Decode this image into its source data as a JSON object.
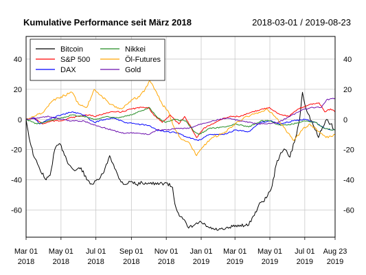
{
  "chart_data": {
    "type": "line",
    "title": "Kumulative Performance seit März 2018",
    "date_range": "2018-03-01 / 2019-08-23",
    "xlabel": "",
    "ylabel": "",
    "ylim": [
      -78,
      55
    ],
    "x_ticks": [
      {
        "date": "2018-03-01",
        "line1": "Mar 01",
        "line2": "2018"
      },
      {
        "date": "2018-05-01",
        "line1": "May 01",
        "line2": "2018"
      },
      {
        "date": "2018-07-01",
        "line1": "Jul 01",
        "line2": "2018"
      },
      {
        "date": "2018-09-01",
        "line1": "Sep 01",
        "line2": "2018"
      },
      {
        "date": "2018-11-01",
        "line1": "Nov 01",
        "line2": "2018"
      },
      {
        "date": "2019-01-01",
        "line1": "Jan 01",
        "line2": "2019"
      },
      {
        "date": "2019-03-01",
        "line1": "Mar 01",
        "line2": "2019"
      },
      {
        "date": "2019-05-01",
        "line1": "May 01",
        "line2": "2019"
      },
      {
        "date": "2019-07-01",
        "line1": "Jul 01",
        "line2": "2019"
      },
      {
        "date": "2019-08-23",
        "line1": "Aug 23",
        "line2": "2019"
      }
    ],
    "y_ticks": [
      40,
      20,
      0,
      -20,
      -40,
      -60
    ],
    "y_tick_labels": [
      "40",
      "20",
      "0",
      "-20",
      "-40",
      "-60"
    ],
    "grid": true,
    "legend_position": "top-left",
    "series": [
      {
        "name": "Bitcoin",
        "color": "#000000",
        "points": [
          [
            "2018-03-01",
            0
          ],
          [
            "2018-03-08",
            -15
          ],
          [
            "2018-03-15",
            -25
          ],
          [
            "2018-03-25",
            -33
          ],
          [
            "2018-04-05",
            -40
          ],
          [
            "2018-04-12",
            -37
          ],
          [
            "2018-04-20",
            -20
          ],
          [
            "2018-04-28",
            -16
          ],
          [
            "2018-05-05",
            -21
          ],
          [
            "2018-05-15",
            -30
          ],
          [
            "2018-05-25",
            -34
          ],
          [
            "2018-06-05",
            -32
          ],
          [
            "2018-06-15",
            -40
          ],
          [
            "2018-06-25",
            -43
          ],
          [
            "2018-07-05",
            -40
          ],
          [
            "2018-07-15",
            -35
          ],
          [
            "2018-07-25",
            -24
          ],
          [
            "2018-08-01",
            -30
          ],
          [
            "2018-08-10",
            -39
          ],
          [
            "2018-08-20",
            -43
          ],
          [
            "2018-09-01",
            -41
          ],
          [
            "2018-09-10",
            -43
          ],
          [
            "2018-09-20",
            -42
          ],
          [
            "2018-10-01",
            -42
          ],
          [
            "2018-10-15",
            -43
          ],
          [
            "2018-11-01",
            -42
          ],
          [
            "2018-11-12",
            -45
          ],
          [
            "2018-11-16",
            -56
          ],
          [
            "2018-11-22",
            -62
          ],
          [
            "2018-11-30",
            -66
          ],
          [
            "2018-12-10",
            -72
          ],
          [
            "2018-12-20",
            -70
          ],
          [
            "2019-01-01",
            -68
          ],
          [
            "2019-01-10",
            -71
          ],
          [
            "2019-01-25",
            -73
          ],
          [
            "2019-02-10",
            -73
          ],
          [
            "2019-02-25",
            -71
          ],
          [
            "2019-03-10",
            -70
          ],
          [
            "2019-03-25",
            -70
          ],
          [
            "2019-04-02",
            -64
          ],
          [
            "2019-04-15",
            -55
          ],
          [
            "2019-04-25",
            -52
          ],
          [
            "2019-05-05",
            -44
          ],
          [
            "2019-05-12",
            -30
          ],
          [
            "2019-05-20",
            -22
          ],
          [
            "2019-05-28",
            -20
          ],
          [
            "2019-06-05",
            -25
          ],
          [
            "2019-06-15",
            -12
          ],
          [
            "2019-06-22",
            0
          ],
          [
            "2019-06-27",
            18
          ],
          [
            "2019-07-05",
            5
          ],
          [
            "2019-07-15",
            -3
          ],
          [
            "2019-07-25",
            -12
          ],
          [
            "2019-08-01",
            -5
          ],
          [
            "2019-08-08",
            0
          ],
          [
            "2019-08-15",
            -3
          ],
          [
            "2019-08-23",
            -7
          ]
        ]
      },
      {
        "name": "S&P 500",
        "color": "#ff0000",
        "points": [
          [
            "2018-03-01",
            0
          ],
          [
            "2018-03-15",
            1
          ],
          [
            "2018-03-30",
            -3
          ],
          [
            "2018-04-15",
            -1
          ],
          [
            "2018-05-01",
            -1
          ],
          [
            "2018-05-15",
            1
          ],
          [
            "2018-06-01",
            2
          ],
          [
            "2018-06-15",
            3
          ],
          [
            "2018-07-01",
            2
          ],
          [
            "2018-07-15",
            4
          ],
          [
            "2018-08-01",
            5
          ],
          [
            "2018-08-15",
            5
          ],
          [
            "2018-09-01",
            7
          ],
          [
            "2018-09-20",
            8
          ],
          [
            "2018-10-01",
            8
          ],
          [
            "2018-10-10",
            3
          ],
          [
            "2018-10-25",
            -2
          ],
          [
            "2018-11-08",
            3
          ],
          [
            "2018-11-23",
            -3
          ],
          [
            "2018-12-03",
            2
          ],
          [
            "2018-12-14",
            -5
          ],
          [
            "2018-12-24",
            -12
          ],
          [
            "2019-01-05",
            -6
          ],
          [
            "2019-01-20",
            -3
          ],
          [
            "2019-02-05",
            0
          ],
          [
            "2019-02-20",
            2
          ],
          [
            "2019-03-10",
            2
          ],
          [
            "2019-03-25",
            4
          ],
          [
            "2019-04-10",
            6
          ],
          [
            "2019-04-30",
            8
          ],
          [
            "2019-05-15",
            4
          ],
          [
            "2019-06-03",
            2
          ],
          [
            "2019-06-20",
            7
          ],
          [
            "2019-07-10",
            10
          ],
          [
            "2019-07-26",
            11
          ],
          [
            "2019-08-05",
            5
          ],
          [
            "2019-08-15",
            7
          ],
          [
            "2019-08-23",
            5
          ]
        ]
      },
      {
        "name": "DAX",
        "color": "#0000ff",
        "points": [
          [
            "2018-03-01",
            0
          ],
          [
            "2018-03-15",
            1
          ],
          [
            "2018-03-25",
            -3
          ],
          [
            "2018-04-15",
            1
          ],
          [
            "2018-05-01",
            3
          ],
          [
            "2018-05-20",
            5
          ],
          [
            "2018-06-10",
            3
          ],
          [
            "2018-06-28",
            -2
          ],
          [
            "2018-07-15",
            0
          ],
          [
            "2018-08-01",
            1
          ],
          [
            "2018-08-20",
            -2
          ],
          [
            "2018-09-10",
            -3
          ],
          [
            "2018-10-01",
            -4
          ],
          [
            "2018-10-15",
            -7
          ],
          [
            "2018-11-01",
            -8
          ],
          [
            "2018-11-20",
            -9
          ],
          [
            "2018-12-10",
            -12
          ],
          [
            "2018-12-27",
            -14
          ],
          [
            "2019-01-15",
            -10
          ],
          [
            "2019-02-10",
            -10
          ],
          [
            "2019-03-01",
            -7
          ],
          [
            "2019-03-25",
            -8
          ],
          [
            "2019-04-15",
            -2
          ],
          [
            "2019-05-01",
            -1
          ],
          [
            "2019-05-20",
            -3
          ],
          [
            "2019-06-10",
            -1
          ],
          [
            "2019-07-01",
            0
          ],
          [
            "2019-07-20",
            -2
          ],
          [
            "2019-08-05",
            -6
          ],
          [
            "2019-08-23",
            -7
          ]
        ]
      },
      {
        "name": "Nikkei",
        "color": "#228b22",
        "points": [
          [
            "2018-03-01",
            0
          ],
          [
            "2018-03-20",
            -3
          ],
          [
            "2018-04-10",
            -1
          ],
          [
            "2018-05-01",
            1
          ],
          [
            "2018-05-20",
            3
          ],
          [
            "2018-06-10",
            2
          ],
          [
            "2018-07-01",
            0
          ],
          [
            "2018-07-20",
            2
          ],
          [
            "2018-08-10",
            1
          ],
          [
            "2018-09-01",
            3
          ],
          [
            "2018-09-20",
            6
          ],
          [
            "2018-10-02",
            8
          ],
          [
            "2018-10-15",
            2
          ],
          [
            "2018-10-30",
            -2
          ],
          [
            "2018-11-15",
            0
          ],
          [
            "2018-12-05",
            -1
          ],
          [
            "2018-12-20",
            -8
          ],
          [
            "2018-12-28",
            -10
          ],
          [
            "2019-01-15",
            -6
          ],
          [
            "2019-02-10",
            -5
          ],
          [
            "2019-03-01",
            -3
          ],
          [
            "2019-03-25",
            -5
          ],
          [
            "2019-04-15",
            -1
          ],
          [
            "2019-05-01",
            -1
          ],
          [
            "2019-05-20",
            -4
          ],
          [
            "2019-06-10",
            -3
          ],
          [
            "2019-07-01",
            -1
          ],
          [
            "2019-07-20",
            -2
          ],
          [
            "2019-08-05",
            -6
          ],
          [
            "2019-08-23",
            -7
          ]
        ]
      },
      {
        "name": "Öl-Futures",
        "color": "#ffa500",
        "points": [
          [
            "2018-03-01",
            0
          ],
          [
            "2018-03-15",
            2
          ],
          [
            "2018-04-01",
            5
          ],
          [
            "2018-04-15",
            12
          ],
          [
            "2018-05-01",
            15
          ],
          [
            "2018-05-20",
            18
          ],
          [
            "2018-06-01",
            10
          ],
          [
            "2018-06-15",
            8
          ],
          [
            "2018-06-28",
            20
          ],
          [
            "2018-07-10",
            16
          ],
          [
            "2018-07-25",
            10
          ],
          [
            "2018-08-15",
            7
          ],
          [
            "2018-09-01",
            13
          ],
          [
            "2018-09-15",
            15
          ],
          [
            "2018-09-25",
            20
          ],
          [
            "2018-10-03",
            26
          ],
          [
            "2018-10-15",
            18
          ],
          [
            "2018-10-25",
            10
          ],
          [
            "2018-11-05",
            5
          ],
          [
            "2018-11-12",
            -3
          ],
          [
            "2018-11-25",
            -12
          ],
          [
            "2018-12-10",
            -15
          ],
          [
            "2018-12-24",
            -24
          ],
          [
            "2019-01-05",
            -18
          ],
          [
            "2019-01-20",
            -12
          ],
          [
            "2019-02-10",
            -9
          ],
          [
            "2019-03-01",
            -3
          ],
          [
            "2019-03-20",
            2
          ],
          [
            "2019-04-10",
            4
          ],
          [
            "2019-04-25",
            7
          ],
          [
            "2019-05-10",
            2
          ],
          [
            "2019-05-25",
            -5
          ],
          [
            "2019-06-12",
            -14
          ],
          [
            "2019-06-28",
            -6
          ],
          [
            "2019-07-10",
            -3
          ],
          [
            "2019-07-25",
            -8
          ],
          [
            "2019-08-07",
            -12
          ],
          [
            "2019-08-23",
            -10
          ]
        ]
      },
      {
        "name": "Gold",
        "color": "#6a0dad",
        "points": [
          [
            "2018-03-01",
            0
          ],
          [
            "2018-03-20",
            1
          ],
          [
            "2018-04-10",
            2
          ],
          [
            "2018-05-01",
            0
          ],
          [
            "2018-05-20",
            -1
          ],
          [
            "2018-06-10",
            -1
          ],
          [
            "2018-07-01",
            -4
          ],
          [
            "2018-07-20",
            -6
          ],
          [
            "2018-08-15",
            -9
          ],
          [
            "2018-09-10",
            -9
          ],
          [
            "2018-10-01",
            -10
          ],
          [
            "2018-10-15",
            -7
          ],
          [
            "2018-11-01",
            -7
          ],
          [
            "2018-11-20",
            -6
          ],
          [
            "2018-12-10",
            -6
          ],
          [
            "2018-12-31",
            -3
          ],
          [
            "2019-01-20",
            -1
          ],
          [
            "2019-02-15",
            1
          ],
          [
            "2019-03-10",
            -1
          ],
          [
            "2019-04-10",
            -3
          ],
          [
            "2019-04-25",
            -3
          ],
          [
            "2019-05-15",
            -2
          ],
          [
            "2019-06-05",
            2
          ],
          [
            "2019-06-25",
            6
          ],
          [
            "2019-07-15",
            8
          ],
          [
            "2019-07-30",
            8
          ],
          [
            "2019-08-08",
            13
          ],
          [
            "2019-08-23",
            14
          ]
        ]
      }
    ]
  }
}
